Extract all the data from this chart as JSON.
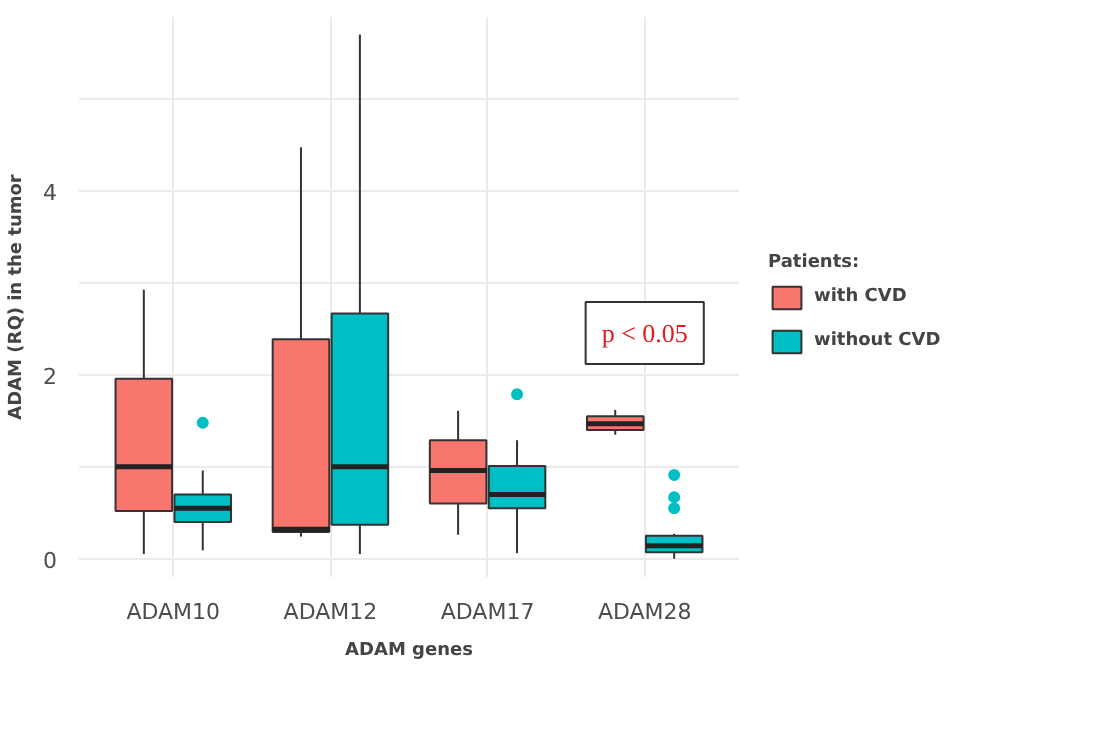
{
  "chart_data": {
    "type": "box",
    "xlabel": "ADAM genes",
    "ylabel": "ADAM (RQ) in the tumor",
    "legend_title": "Patients:",
    "legend": "right",
    "grid": true,
    "categories": [
      "ADAM10",
      "ADAM12",
      "ADAM17",
      "ADAM28"
    ],
    "ylim": [
      -0.2,
      5.9
    ],
    "yticks": [
      0,
      {
        "value": 1,
        "label": null
      },
      2,
      {
        "value": 3,
        "label": null
      },
      4,
      {
        "value": 5,
        "label": null
      }
    ],
    "series": [
      {
        "name": "with CVD",
        "color": "#f8766d",
        "boxes": [
          {
            "low": 0.05,
            "q1": 0.52,
            "median": 1.0,
            "q3": 1.96,
            "high": 2.93
          },
          {
            "low": 0.24,
            "q1": 0.29,
            "median": 0.32,
            "q3": 2.39,
            "high": 4.48
          },
          {
            "low": 0.26,
            "q1": 0.6,
            "median": 0.96,
            "q3": 1.29,
            "high": 1.61
          },
          {
            "low": 1.35,
            "q1": 1.4,
            "median": 1.47,
            "q3": 1.55,
            "high": 1.62
          }
        ]
      },
      {
        "name": "without CVD",
        "color": "#00bfc4",
        "boxes": [
          {
            "low": 0.09,
            "q1": 0.4,
            "median": 0.55,
            "q3": 0.7,
            "high": 0.96,
            "outliers": [
              1.48
            ]
          },
          {
            "low": 0.05,
            "q1": 0.37,
            "median": 1.0,
            "q3": 2.67,
            "high": 5.71
          },
          {
            "low": 0.06,
            "q1": 0.55,
            "median": 0.7,
            "q3": 1.01,
            "high": 1.29,
            "outliers": [
              1.79
            ]
          },
          {
            "low": 0.0,
            "q1": 0.07,
            "median": 0.14,
            "q3": 0.25,
            "high": 0.27,
            "outliers": [
              0.55,
              0.67,
              0.91
            ]
          }
        ]
      }
    ],
    "annotations": [
      "p < 0.05"
    ]
  }
}
